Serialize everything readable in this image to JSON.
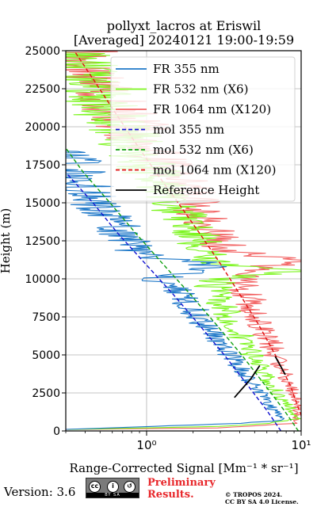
{
  "header": {
    "title_line1": "pollyxt_lacros at Eriswil",
    "title_line2": "[Averaged] 20240121 19:00-19:59"
  },
  "footer": {
    "version": "Version: 3.6",
    "license_badge": "cc-by-sa-icon",
    "cc_strip_text": "BY   SA",
    "preliminary_line1": "Preliminary",
    "preliminary_line2": "Results.",
    "copyright_line1": "© TROPOS 2024.",
    "copyright_line2": "CC BY SA 4.0 License."
  },
  "chart_data": {
    "type": "line",
    "title": "pollyxt_lacros at Eriswil [Averaged] 20240121 19:00-19:59",
    "xlabel": "Range-Corrected Signal [Mm⁻¹ * sr⁻¹]",
    "ylabel": "Height (m)",
    "xscale": "log",
    "xlim": [
      0.3,
      10
    ],
    "ylim": [
      0,
      25000
    ],
    "yticks": [
      0,
      2500,
      5000,
      7500,
      10000,
      12500,
      15000,
      17500,
      20000,
      22500,
      25000
    ],
    "ytick_labels": [
      "0",
      "2500",
      "5000",
      "7500",
      "10000",
      "12500",
      "15000",
      "17500",
      "20000",
      "22500",
      "25000"
    ],
    "xticks": [
      1,
      10
    ],
    "xtick_labels": [
      "10⁰",
      "10¹"
    ],
    "grid": true,
    "legend_position": "top-right",
    "colors": {
      "fr355": "#1e78c8",
      "fr532": "#7cf51e",
      "fr1064": "#f26464",
      "mol355": "#1010d0",
      "mol532": "#10a010",
      "mol1064": "#e01010",
      "ref": "#000000"
    },
    "series": [
      {
        "name": "FR 355 nm",
        "style": "solid",
        "noisy": true,
        "points": [
          [
            0.3,
            100
          ],
          [
            0.6,
            200
          ],
          [
            1.5,
            350
          ],
          [
            4,
            500
          ],
          [
            7.5,
            700
          ],
          [
            6.5,
            1500
          ],
          [
            5.5,
            2500
          ],
          [
            4.5,
            3500
          ],
          [
            3.8,
            4500
          ],
          [
            3.1,
            5500
          ],
          [
            2.6,
            6500
          ],
          [
            2.2,
            7500
          ],
          [
            1.8,
            8500
          ],
          [
            1.4,
            9500
          ],
          [
            1.15,
            10000
          ],
          [
            2.3,
            10500
          ],
          [
            2.7,
            11100
          ],
          [
            1.6,
            11200
          ],
          [
            0.95,
            11500
          ],
          [
            0.85,
            12000
          ],
          [
            0.7,
            13000
          ],
          [
            0.55,
            14000
          ],
          [
            0.5,
            14700
          ],
          [
            0.45,
            15300
          ],
          [
            0.4,
            15900
          ],
          [
            0.38,
            16600
          ],
          [
            0.34,
            17100
          ],
          [
            0.32,
            17400
          ],
          [
            0.31,
            18000
          ],
          [
            0.3,
            18500
          ]
        ]
      },
      {
        "name": "FR 532 nm (X6)",
        "style": "solid",
        "noisy": true,
        "points": [
          [
            0.3,
            100
          ],
          [
            1.0,
            200
          ],
          [
            3.0,
            300
          ],
          [
            6.0,
            500
          ],
          [
            9.5,
            800
          ],
          [
            8.5,
            1500
          ],
          [
            7.0,
            2500
          ],
          [
            6.0,
            3500
          ],
          [
            5.2,
            4500
          ],
          [
            4.5,
            5500
          ],
          [
            3.9,
            6500
          ],
          [
            3.4,
            7500
          ],
          [
            3.0,
            8500
          ],
          [
            2.7,
            9500
          ],
          [
            2.9,
            10000
          ],
          [
            9.8,
            10500
          ],
          [
            2.9,
            11000
          ],
          [
            2.5,
            11600
          ],
          [
            2.2,
            12500
          ],
          [
            1.9,
            13500
          ],
          [
            1.6,
            14500
          ],
          [
            1.35,
            15500
          ],
          [
            1.15,
            16500
          ],
          [
            1.0,
            17500
          ],
          [
            0.85,
            18500
          ],
          [
            0.72,
            19500
          ],
          [
            0.62,
            20500
          ],
          [
            0.52,
            21500
          ],
          [
            0.45,
            22500
          ],
          [
            0.4,
            23500
          ],
          [
            0.35,
            24500
          ],
          [
            0.33,
            25000
          ]
        ]
      },
      {
        "name": "FR 1064 nm (X120)",
        "style": "solid",
        "noisy": true,
        "points": [
          [
            0.3,
            100
          ],
          [
            3.0,
            200
          ],
          [
            9.0,
            500
          ],
          [
            9.5,
            1000
          ],
          [
            9.5,
            1800
          ],
          [
            8.8,
            2600
          ],
          [
            8.0,
            3500
          ],
          [
            7.0,
            4500
          ],
          [
            6.5,
            5500
          ],
          [
            5.8,
            6500
          ],
          [
            5.3,
            7500
          ],
          [
            4.8,
            8500
          ],
          [
            4.2,
            9500
          ],
          [
            3.9,
            10500
          ],
          [
            9.8,
            11200
          ],
          [
            3.4,
            11800
          ],
          [
            3.0,
            12500
          ],
          [
            2.6,
            13500
          ],
          [
            2.2,
            14500
          ],
          [
            1.9,
            15500
          ],
          [
            1.6,
            16500
          ],
          [
            1.3,
            17500
          ],
          [
            1.1,
            18500
          ],
          [
            0.9,
            19500
          ],
          [
            0.75,
            20500
          ],
          [
            0.62,
            21500
          ],
          [
            0.52,
            22500
          ],
          [
            0.45,
            23500
          ],
          [
            0.4,
            24500
          ],
          [
            0.38,
            25000
          ]
        ]
      },
      {
        "name": "mol 355 nm",
        "style": "dashed",
        "points": [
          [
            7.4,
            0
          ],
          [
            5.95,
            1400
          ],
          [
            4.51,
            3000
          ],
          [
            3.18,
            5000
          ],
          [
            2.18,
            7000
          ],
          [
            1.48,
            9000
          ],
          [
            0.98,
            11000
          ],
          [
            0.65,
            13000
          ],
          [
            0.45,
            15000
          ],
          [
            0.3,
            17000
          ]
        ]
      },
      {
        "name": "mol 532 nm (X6)",
        "style": "dashed",
        "points": [
          [
            9.6,
            0
          ],
          [
            7.7,
            1400
          ],
          [
            5.85,
            3000
          ],
          [
            4.12,
            5000
          ],
          [
            2.82,
            7000
          ],
          [
            1.91,
            9000
          ],
          [
            1.27,
            11000
          ],
          [
            0.85,
            13000
          ],
          [
            0.58,
            15000
          ],
          [
            0.39,
            17000
          ],
          [
            0.3,
            18600
          ]
        ]
      },
      {
        "name": "mol 1064 nm (X120)",
        "style": "dashed",
        "points": [
          [
            10,
            1000
          ],
          [
            8.5,
            3000
          ],
          [
            6.8,
            5000
          ],
          [
            5.3,
            7000
          ],
          [
            4.0,
            9000
          ],
          [
            3.0,
            11000
          ],
          [
            2.2,
            13000
          ],
          [
            1.6,
            15000
          ],
          [
            1.15,
            17000
          ],
          [
            0.84,
            19000
          ],
          [
            0.62,
            21000
          ],
          [
            0.46,
            23000
          ],
          [
            0.34,
            25000
          ]
        ]
      },
      {
        "name": "Reference Height",
        "style": "solid",
        "points": [
          [
            3.7,
            2200
          ],
          [
            4.7,
            3400
          ],
          [
            5.4,
            4300
          ]
        ]
      },
      {
        "name": "Reference Height",
        "style": "solid",
        "points": [
          [
            6.8,
            4900
          ],
          [
            7.9,
            3700
          ]
        ]
      }
    ],
    "legend": [
      "FR 355 nm",
      "FR 532 nm (X6)",
      "FR 1064 nm (X120)",
      "mol 355 nm",
      "mol 532 nm (X6)",
      "mol 1064 nm (X120)",
      "Reference Height"
    ]
  }
}
